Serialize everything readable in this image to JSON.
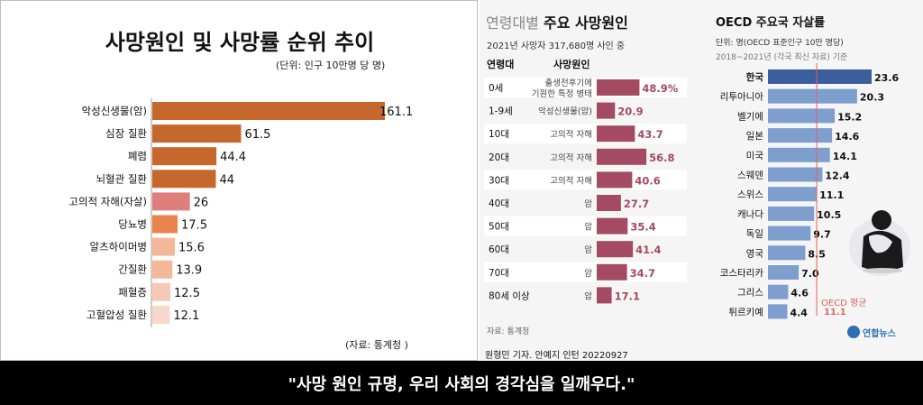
{
  "colors": {
    "left_bar_dark": "#c6682c",
    "left_bar_mid": "#e9854c",
    "left_bar_pink": "#df7f7c",
    "left_bar_light": "#f3b79a",
    "left_bar_lighter": "#f6c9b6",
    "left_bar_lightest": "#f8d8cc",
    "age_bar": "#a44a62",
    "age_value": "#a44a62",
    "oecd_bar": "#7e9ece",
    "oecd_korea": "#3a5f9c",
    "avg_line": "#d8675a"
  },
  "chart_data": [
    {
      "type": "bar",
      "orientation": "horizontal",
      "title": "사망원인 및 사망률 순위 추이",
      "unit_note": "(단위: 인구 10만명 당 명)",
      "source": "(자료: 통계청 )",
      "categories": [
        "악성신생물(암)",
        "심장 질환",
        "폐렴",
        "뇌혈관 질환",
        "고의적 자해(자살)",
        "당뇨병",
        "알츠하이머병",
        "간질환",
        "패혈증",
        "고혈압성 질환"
      ],
      "values": [
        161.1,
        61.5,
        44.4,
        44,
        26,
        17.5,
        15.6,
        13.9,
        12.5,
        12.1
      ],
      "value_labels": [
        "161.1",
        "61.5",
        "44.4",
        "44",
        "26",
        "17.5",
        "15.6",
        "13.9",
        "12.5",
        "12.1"
      ],
      "bar_colors": [
        "#c6682c",
        "#c6682c",
        "#c6682c",
        "#c6682c",
        "#df7f7c",
        "#e9854c",
        "#f3b79a",
        "#f3b79a",
        "#f6c9b6",
        "#f8d8cc"
      ],
      "xlim": [
        0,
        170
      ]
    },
    {
      "type": "bar",
      "orientation": "horizontal",
      "title_light": "연령대별",
      "title_bold": "주요 사망원인",
      "subtitle": "2021년 사망자 317,680명 사인 중",
      "col_headers": [
        "연령대",
        "사망원인"
      ],
      "ages": [
        "0세",
        "1-9세",
        "10대",
        "20대",
        "30대",
        "40대",
        "50대",
        "60대",
        "70대",
        "80세 이상"
      ],
      "causes": [
        [
          "출생전후기에",
          "기원한 특정 병태"
        ],
        [
          "악성신생물(암)"
        ],
        [
          "고의적 자해"
        ],
        [
          "고의적 자해"
        ],
        [
          "고의적 자해"
        ],
        [
          "암"
        ],
        [
          "암"
        ],
        [
          "암"
        ],
        [
          "암"
        ],
        [
          "암"
        ]
      ],
      "values": [
        48.9,
        20.9,
        43.7,
        56.8,
        40.6,
        27.7,
        35.4,
        41.4,
        34.7,
        17.1
      ],
      "value_labels": [
        "48.9%",
        "20.9",
        "43.7",
        "56.8",
        "40.6",
        "27.7",
        "35.4",
        "41.4",
        "34.7",
        "17.1"
      ],
      "unit": "%",
      "source": "자료: 통계청",
      "xlim": [
        0,
        100
      ]
    },
    {
      "type": "bar",
      "orientation": "horizontal",
      "title": "OECD 주요국 자살률",
      "unit_note": "단위: 명(OECD 표준인구 10만 명당)",
      "period_note": "2018~2021년 (각국 최신 자료) 기준",
      "categories": [
        "한국",
        "리투아니아",
        "벨기에",
        "일본",
        "미국",
        "스웨덴",
        "스위스",
        "캐나다",
        "독일",
        "영국",
        "코스타리카",
        "그리스",
        "튀르키예"
      ],
      "values": [
        23.6,
        20.3,
        15.2,
        14.6,
        14.1,
        12.4,
        11.1,
        10.5,
        9.7,
        8.5,
        7.0,
        4.6,
        4.4
      ],
      "value_labels": [
        "23.6",
        "20.3",
        "15.2",
        "14.6",
        "14.1",
        "12.4",
        "11.1",
        "10.5",
        "9.7",
        "8.5",
        "7.0",
        "4.6",
        "4.4"
      ],
      "average_label": "OECD 평균",
      "average_value": 11.1,
      "average_value_label": "11.1",
      "xlim": [
        0,
        25
      ]
    }
  ],
  "credit": "원형민 기자. 안예지 인턴  20220927",
  "logo_text": "연합뉴스",
  "caption": "\"사망 원인 규명, 우리 사회의 경각심을 일깨우다.\""
}
